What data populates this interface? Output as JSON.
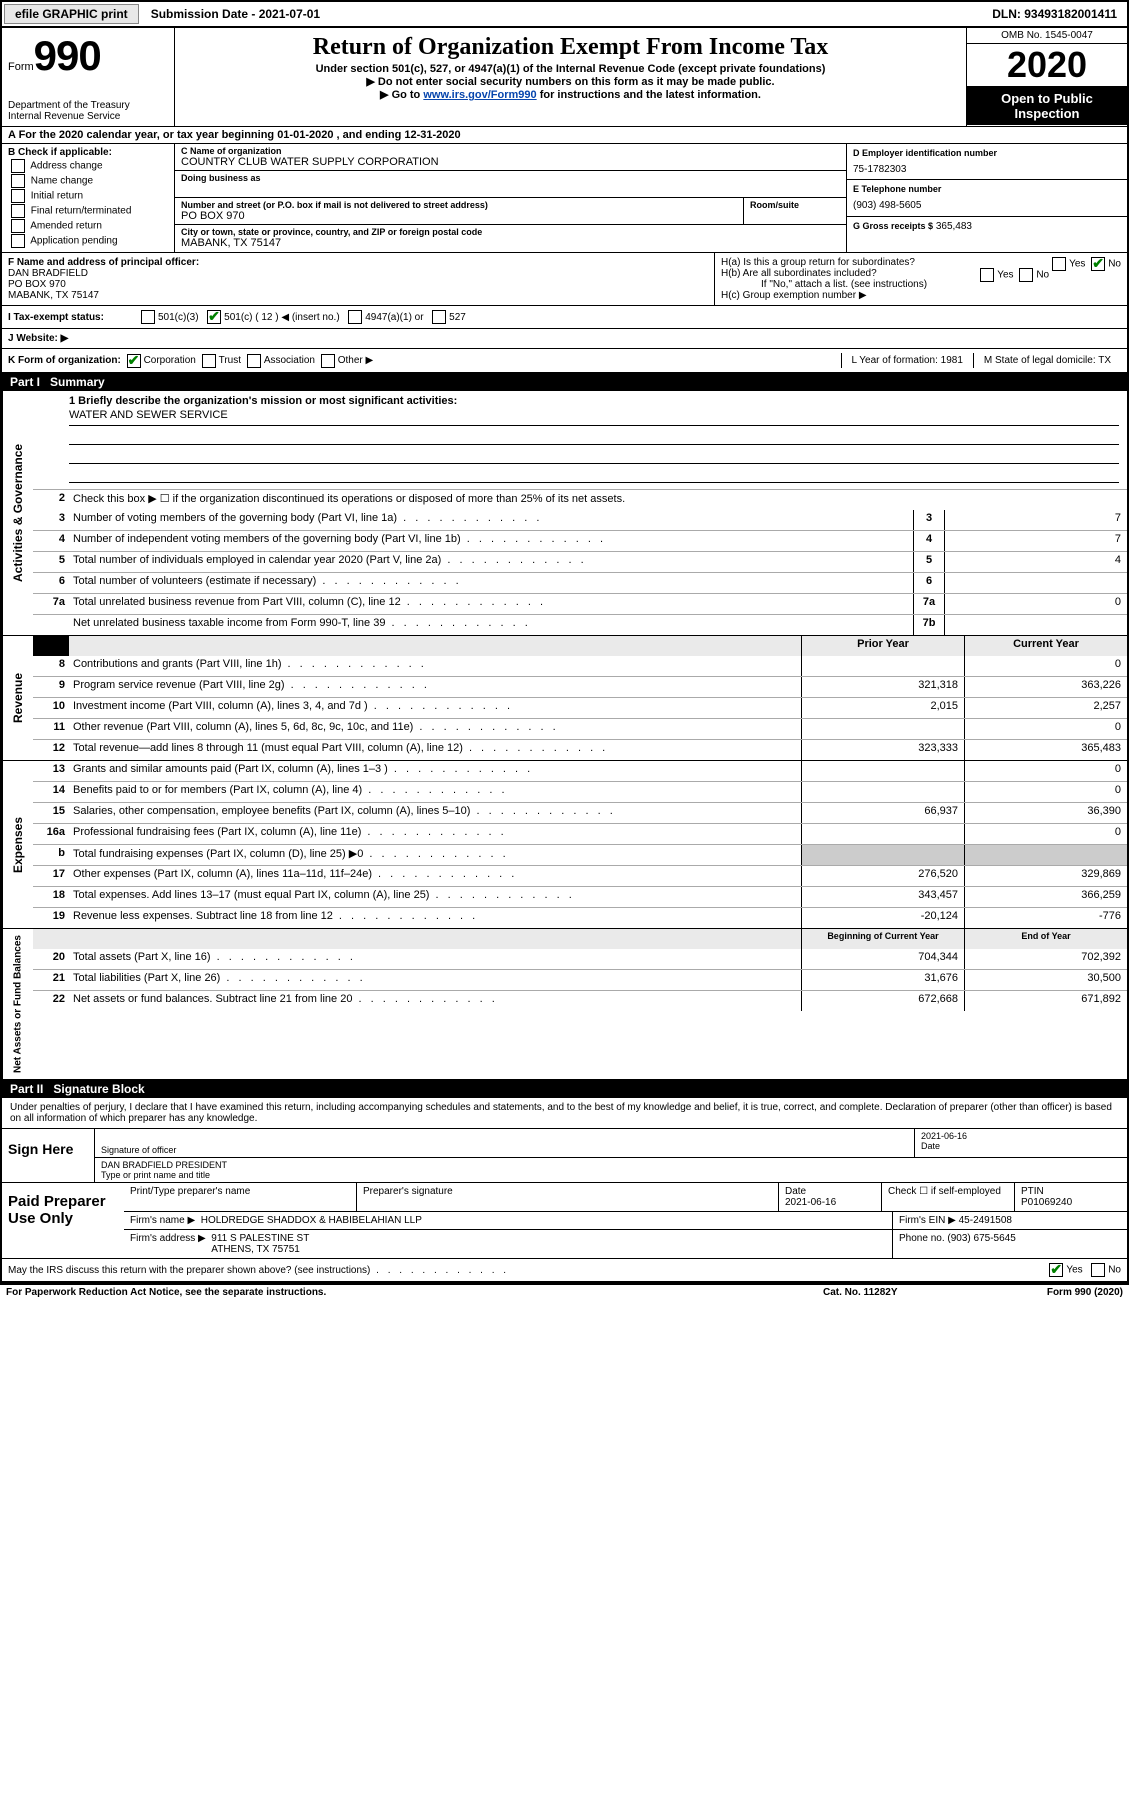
{
  "top_bar": {
    "efile_btn": "efile GRAPHIC print",
    "submission_label": "Submission Date - 2021-07-01",
    "dln": "DLN: 93493182001411"
  },
  "header": {
    "form_label": "Form",
    "form_number": "990",
    "dept": "Department of the Treasury\nInternal Revenue Service",
    "title": "Return of Organization Exempt From Income Tax",
    "subtitle": "Under section 501(c), 527, or 4947(a)(1) of the Internal Revenue Code (except private foundations)",
    "note1": "▶ Do not enter social security numbers on this form as it may be made public.",
    "note2_pre": "▶ Go to ",
    "note2_link": "www.irs.gov/Form990",
    "note2_post": " for instructions and the latest information.",
    "omb": "OMB No. 1545-0047",
    "year": "2020",
    "inspection": "Open to Public Inspection"
  },
  "row_a": "A For the 2020 calendar year, or tax year beginning 01-01-2020   , and ending 12-31-2020",
  "section_b": {
    "label": "B Check if applicable:",
    "opts": [
      "Address change",
      "Name change",
      "Initial return",
      "Final return/terminated",
      "Amended return",
      "Application pending"
    ]
  },
  "section_c": {
    "name_lbl": "C Name of organization",
    "name_val": "COUNTRY CLUB WATER SUPPLY CORPORATION",
    "dba_lbl": "Doing business as",
    "addr_lbl": "Number and street (or P.O. box if mail is not delivered to street address)",
    "addr_val": "PO BOX 970",
    "room_lbl": "Room/suite",
    "city_lbl": "City or town, state or province, country, and ZIP or foreign postal code",
    "city_val": "MABANK, TX  75147"
  },
  "section_d": {
    "lbl": "D Employer identification number",
    "val": "75-1782303"
  },
  "section_e": {
    "lbl": "E Telephone number",
    "val": "(903) 498-5605"
  },
  "section_g": {
    "lbl": "G Gross receipts $",
    "val": "365,483"
  },
  "section_f": {
    "lbl": "F Name and address of principal officer:",
    "name": "DAN BRADFIELD",
    "addr1": "PO BOX 970",
    "addr2": "MABANK, TX  75147"
  },
  "section_h": {
    "ha": "H(a)  Is this a group return for subordinates?",
    "hb": "H(b)  Are all subordinates included?",
    "hb_note": "If \"No,\" attach a list. (see instructions)",
    "hc": "H(c)  Group exemption number ▶"
  },
  "status": {
    "lbl": "I   Tax-exempt status:",
    "c3": "501(c)(3)",
    "c": "501(c) ( 12 ) ◀ (insert no.)",
    "a1": "4947(a)(1) or",
    "s527": "527"
  },
  "website": {
    "lbl": "J   Website: ▶"
  },
  "row_k": {
    "lbl": "K Form of organization:",
    "corp": "Corporation",
    "trust": "Trust",
    "assoc": "Association",
    "other": "Other ▶",
    "l": "L Year of formation: 1981",
    "m": "M State of legal domicile: TX"
  },
  "part1": {
    "label": "Part I",
    "title": "Summary"
  },
  "mission": {
    "q": "1  Briefly describe the organization's mission or most significant activities:",
    "val": "WATER AND SEWER SERVICE"
  },
  "governance": {
    "line2": "Check this box ▶ ☐  if the organization discontinued its operations or disposed of more than 25% of its net assets.",
    "lines": [
      {
        "n": "3",
        "t": "Number of voting members of the governing body (Part VI, line 1a)",
        "b": "3",
        "v": "7"
      },
      {
        "n": "4",
        "t": "Number of independent voting members of the governing body (Part VI, line 1b)",
        "b": "4",
        "v": "7"
      },
      {
        "n": "5",
        "t": "Total number of individuals employed in calendar year 2020 (Part V, line 2a)",
        "b": "5",
        "v": "4"
      },
      {
        "n": "6",
        "t": "Total number of volunteers (estimate if necessary)",
        "b": "6",
        "v": ""
      },
      {
        "n": "7a",
        "t": "Total unrelated business revenue from Part VIII, column (C), line 12",
        "b": "7a",
        "v": "0"
      },
      {
        "n": "",
        "t": "Net unrelated business taxable income from Form 990-T, line 39",
        "b": "7b",
        "v": ""
      }
    ]
  },
  "two_col_header": {
    "prior": "Prior Year",
    "current": "Current Year"
  },
  "revenue": [
    {
      "n": "8",
      "t": "Contributions and grants (Part VIII, line 1h)",
      "p": "",
      "c": "0"
    },
    {
      "n": "9",
      "t": "Program service revenue (Part VIII, line 2g)",
      "p": "321,318",
      "c": "363,226"
    },
    {
      "n": "10",
      "t": "Investment income (Part VIII, column (A), lines 3, 4, and 7d )",
      "p": "2,015",
      "c": "2,257"
    },
    {
      "n": "11",
      "t": "Other revenue (Part VIII, column (A), lines 5, 6d, 8c, 9c, 10c, and 11e)",
      "p": "",
      "c": "0"
    },
    {
      "n": "12",
      "t": "Total revenue—add lines 8 through 11 (must equal Part VIII, column (A), line 12)",
      "p": "323,333",
      "c": "365,483"
    }
  ],
  "expenses": [
    {
      "n": "13",
      "t": "Grants and similar amounts paid (Part IX, column (A), lines 1–3 )",
      "p": "",
      "c": "0"
    },
    {
      "n": "14",
      "t": "Benefits paid to or for members (Part IX, column (A), line 4)",
      "p": "",
      "c": "0"
    },
    {
      "n": "15",
      "t": "Salaries, other compensation, employee benefits (Part IX, column (A), lines 5–10)",
      "p": "66,937",
      "c": "36,390"
    },
    {
      "n": "16a",
      "t": "Professional fundraising fees (Part IX, column (A), line 11e)",
      "p": "",
      "c": "0"
    },
    {
      "n": "b",
      "t": "Total fundraising expenses (Part IX, column (D), line 25) ▶0",
      "p": "—",
      "c": "—"
    },
    {
      "n": "17",
      "t": "Other expenses (Part IX, column (A), lines 11a–11d, 11f–24e)",
      "p": "276,520",
      "c": "329,869"
    },
    {
      "n": "18",
      "t": "Total expenses. Add lines 13–17 (must equal Part IX, column (A), line 25)",
      "p": "343,457",
      "c": "366,259"
    },
    {
      "n": "19",
      "t": "Revenue less expenses. Subtract line 18 from line 12",
      "p": "-20,124",
      "c": "-776"
    }
  ],
  "net_header": {
    "prior": "Beginning of Current Year",
    "current": "End of Year"
  },
  "net": [
    {
      "n": "20",
      "t": "Total assets (Part X, line 16)",
      "p": "704,344",
      "c": "702,392"
    },
    {
      "n": "21",
      "t": "Total liabilities (Part X, line 26)",
      "p": "31,676",
      "c": "30,500"
    },
    {
      "n": "22",
      "t": "Net assets or fund balances. Subtract line 21 from line 20",
      "p": "672,668",
      "c": "671,892"
    }
  ],
  "part2": {
    "label": "Part II",
    "title": "Signature Block"
  },
  "perjury": "Under penalties of perjury, I declare that I have examined this return, including accompanying schedules and statements, and to the best of my knowledge and belief, it is true, correct, and complete. Declaration of preparer (other than officer) is based on all information of which preparer has any knowledge.",
  "sign": {
    "left": "Sign Here",
    "sig_lbl": "Signature of officer",
    "date_lbl": "Date",
    "date_val": "2021-06-16",
    "name_val": "DAN BRADFIELD PRESIDENT",
    "name_lbl": "Type or print name and title"
  },
  "prep": {
    "left": "Paid Preparer Use Only",
    "h_name": "Print/Type preparer's name",
    "h_sig": "Preparer's signature",
    "h_date": "Date",
    "date_val": "2021-06-16",
    "h_check": "Check ☐ if self-employed",
    "h_ptin": "PTIN",
    "ptin_val": "P01069240",
    "firm_lbl": "Firm's name    ▶",
    "firm_val": "HOLDREDGE SHADDOX & HABIBELAHIAN LLP",
    "ein_lbl": "Firm's EIN ▶",
    "ein_val": "45-2491508",
    "addr_lbl": "Firm's address ▶",
    "addr_val1": "911 S PALESTINE ST",
    "addr_val2": "ATHENS, TX  75751",
    "phone_lbl": "Phone no.",
    "phone_val": "(903) 675-5645"
  },
  "discuss": "May the IRS discuss this return with the preparer shown above? (see instructions)",
  "footer": {
    "left": "For Paperwork Reduction Act Notice, see the separate instructions.",
    "mid": "Cat. No. 11282Y",
    "right": "Form 990 (2020)"
  },
  "vtabs": {
    "gov": "Activities & Governance",
    "rev": "Revenue",
    "exp": "Expenses",
    "net": "Net Assets or Fund Balances"
  }
}
